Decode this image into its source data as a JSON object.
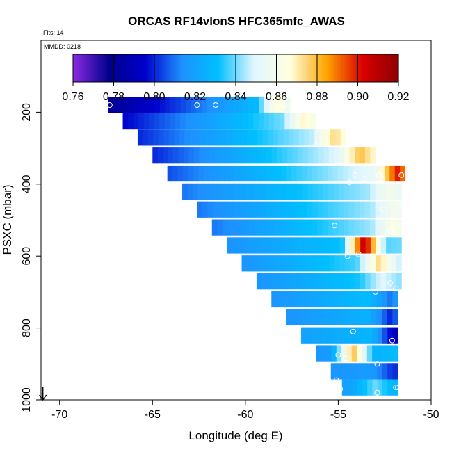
{
  "chart_data": {
    "type": "heatmap",
    "title": "ORCAS RF14vlonS HFC365mfc_AWAS",
    "xlabel": "Longitude (deg E)",
    "ylabel": "PSXC (mbar)",
    "flights_label": "Flts: 14",
    "mmdd_label": "MMDD: 0218",
    "xlim": [
      -71,
      -50
    ],
    "ylim": [
      1000,
      0
    ],
    "x_ticks": [
      -70,
      -65,
      -60,
      -55,
      -50
    ],
    "y_ticks": [
      200,
      400,
      600,
      800,
      1000
    ],
    "colorbar": {
      "range": [
        0.76,
        0.92
      ],
      "ticks": [
        "0.76",
        "0.78",
        "0.80",
        "0.82",
        "0.84",
        "0.86",
        "0.88",
        "0.90",
        "0.92"
      ],
      "colors": [
        "#8a2be2",
        "#00008b",
        "#0000cd",
        "#1e90ff",
        "#00bfff",
        "#e0f6ff",
        "#ffffe0",
        "#ffa500",
        "#dc0000",
        "#8b0000"
      ]
    },
    "band_rows": [
      {
        "pressure": 180,
        "lon_start": -67.4,
        "lon_end": -57.6,
        "value_start": 0.78,
        "value_end": 0.84,
        "hot_lon": -58.2,
        "hot_value": 0.87
      },
      {
        "pressure": 225,
        "lon_start": -66.6,
        "lon_end": -56.2,
        "value_start": 0.795,
        "value_end": 0.85,
        "hot_lon": -56.8,
        "hot_value": 0.87
      },
      {
        "pressure": 270,
        "lon_start": -65.8,
        "lon_end": -54.6,
        "value_start": 0.8,
        "value_end": 0.855,
        "hot_lon": -55.2,
        "hot_value": 0.875
      },
      {
        "pressure": 320,
        "lon_start": -65.0,
        "lon_end": -53.0,
        "value_start": 0.8,
        "value_end": 0.86,
        "hot_lon": -53.8,
        "hot_value": 0.88
      },
      {
        "pressure": 370,
        "lon_start": -64.2,
        "lon_end": -51.4,
        "value_start": 0.805,
        "value_end": 0.86,
        "hot_lon": -51.8,
        "hot_value": 0.9
      },
      {
        "pressure": 420,
        "lon_start": -63.4,
        "lon_end": -51.6,
        "value_start": 0.81,
        "value_end": 0.85,
        "hot_lon": -52.2,
        "hot_value": 0.86
      },
      {
        "pressure": 470,
        "lon_start": -62.6,
        "lon_end": -51.6,
        "value_start": 0.81,
        "value_end": 0.85,
        "hot_lon": -52.0,
        "hot_value": 0.86
      },
      {
        "pressure": 520,
        "lon_start": -61.8,
        "lon_end": -51.6,
        "value_start": 0.81,
        "value_end": 0.85,
        "hot_lon": -52.0,
        "hot_value": 0.865
      },
      {
        "pressure": 570,
        "lon_start": -61.0,
        "lon_end": -51.6,
        "value_start": 0.815,
        "value_end": 0.84,
        "hot_lon": -53.6,
        "hot_value": 0.91
      },
      {
        "pressure": 620,
        "lon_start": -60.2,
        "lon_end": -51.6,
        "value_start": 0.815,
        "value_end": 0.845,
        "hot_lon": -52.8,
        "hot_value": 0.875
      },
      {
        "pressure": 670,
        "lon_start": -59.4,
        "lon_end": -51.6,
        "value_start": 0.815,
        "value_end": 0.84,
        "hot_lon": -52.6,
        "hot_value": 0.85
      },
      {
        "pressure": 720,
        "lon_start": -58.6,
        "lon_end": -51.8,
        "value_start": 0.815,
        "value_end": 0.835,
        "hot_lon": -52.2,
        "hot_value": 0.81
      },
      {
        "pressure": 770,
        "lon_start": -57.8,
        "lon_end": -51.8,
        "value_start": 0.815,
        "value_end": 0.83,
        "hot_lon": -52.2,
        "hot_value": 0.8
      },
      {
        "pressure": 820,
        "lon_start": -57.0,
        "lon_end": -51.8,
        "value_start": 0.82,
        "value_end": 0.83,
        "hot_lon": -52.0,
        "hot_value": 0.79
      },
      {
        "pressure": 870,
        "lon_start": -56.2,
        "lon_end": -51.8,
        "value_start": 0.815,
        "value_end": 0.83,
        "hot_lon": -54.2,
        "hot_value": 0.88
      },
      {
        "pressure": 920,
        "lon_start": -55.4,
        "lon_end": -51.8,
        "value_start": 0.815,
        "value_end": 0.82,
        "hot_lon": -52.0,
        "hot_value": 0.8
      },
      {
        "pressure": 965,
        "lon_start": -54.8,
        "lon_end": -51.8,
        "value_start": 0.82,
        "value_end": 0.825,
        "hot_lon": -53.0,
        "hot_value": 0.84
      }
    ],
    "markers": [
      {
        "lon": -67.3,
        "pressure": 180
      },
      {
        "lon": -62.6,
        "pressure": 180
      },
      {
        "lon": -61.6,
        "pressure": 180
      },
      {
        "lon": -58.2,
        "pressure": 180
      },
      {
        "lon": -57.9,
        "pressure": 180
      },
      {
        "lon": -56.2,
        "pressure": 290
      },
      {
        "lon": -54.1,
        "pressure": 375
      },
      {
        "lon": -53.6,
        "pressure": 385
      },
      {
        "lon": -52.8,
        "pressure": 375
      },
      {
        "lon": -52.6,
        "pressure": 385
      },
      {
        "lon": -51.6,
        "pressure": 375
      },
      {
        "lon": -54.4,
        "pressure": 395
      },
      {
        "lon": -51.7,
        "pressure": 460
      },
      {
        "lon": -52.6,
        "pressure": 470
      },
      {
        "lon": -55.2,
        "pressure": 515
      },
      {
        "lon": -52.2,
        "pressure": 530
      },
      {
        "lon": -53.9,
        "pressure": 595
      },
      {
        "lon": -54.5,
        "pressure": 600
      },
      {
        "lon": -52.2,
        "pressure": 675
      },
      {
        "lon": -53.0,
        "pressure": 700
      },
      {
        "lon": -51.9,
        "pressure": 690
      },
      {
        "lon": -54.2,
        "pressure": 810
      },
      {
        "lon": -52.1,
        "pressure": 835
      },
      {
        "lon": -55.0,
        "pressure": 875
      },
      {
        "lon": -54.6,
        "pressure": 885
      },
      {
        "lon": -52.9,
        "pressure": 900
      },
      {
        "lon": -55.1,
        "pressure": 945
      },
      {
        "lon": -54.9,
        "pressure": 970
      },
      {
        "lon": -52.9,
        "pressure": 980
      },
      {
        "lon": -51.9,
        "pressure": 965
      },
      {
        "lon": -51.8,
        "pressure": 965
      }
    ],
    "arrow_marker": {
      "lon": -70.9,
      "pressure": 1000
    }
  }
}
